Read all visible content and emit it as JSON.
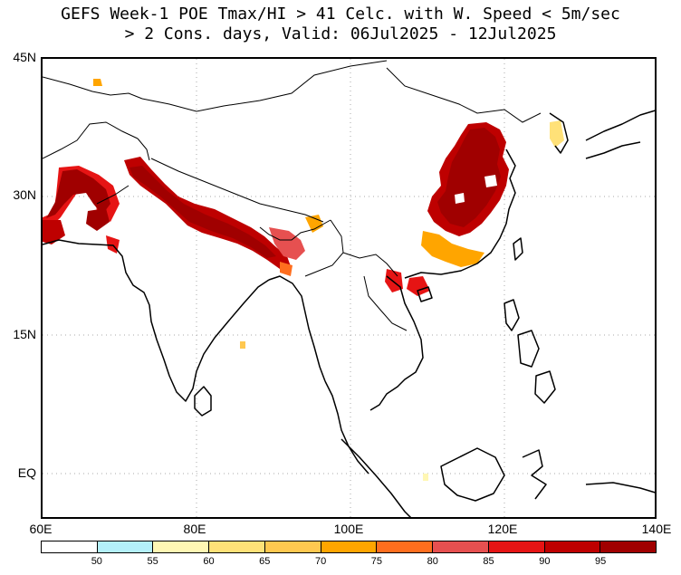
{
  "title": {
    "line1": "GEFS Week-1 POE Tmax/HI > 41 Celc. with W. Speed < 5m/sec",
    "line2": "> 2 Cons. days, Valid: 06Jul2025 - 12Jul2025"
  },
  "axes": {
    "lat_labels": [
      "45N",
      "30N",
      "15N",
      "EQ"
    ],
    "lon_labels": [
      "60E",
      "80E",
      "100E",
      "120E",
      "140E"
    ],
    "lon_range": [
      60,
      140
    ],
    "lat_range": [
      -5,
      45
    ]
  },
  "colorbar": {
    "colors": [
      "#ffffff",
      "#b4f0fa",
      "#fff7b4",
      "#ffe178",
      "#ffc850",
      "#ffa500",
      "#ff6e1e",
      "#e65050",
      "#e61414",
      "#be0000",
      "#a00000"
    ],
    "labels": [
      "50",
      "55",
      "60",
      "65",
      "70",
      "75",
      "80",
      "85",
      "90",
      "95"
    ]
  },
  "colors": {
    "heat_high": "#a00000",
    "heat_mid": "#e61414",
    "heat_low": "#ffa500",
    "grid": "#aaaaaa"
  }
}
